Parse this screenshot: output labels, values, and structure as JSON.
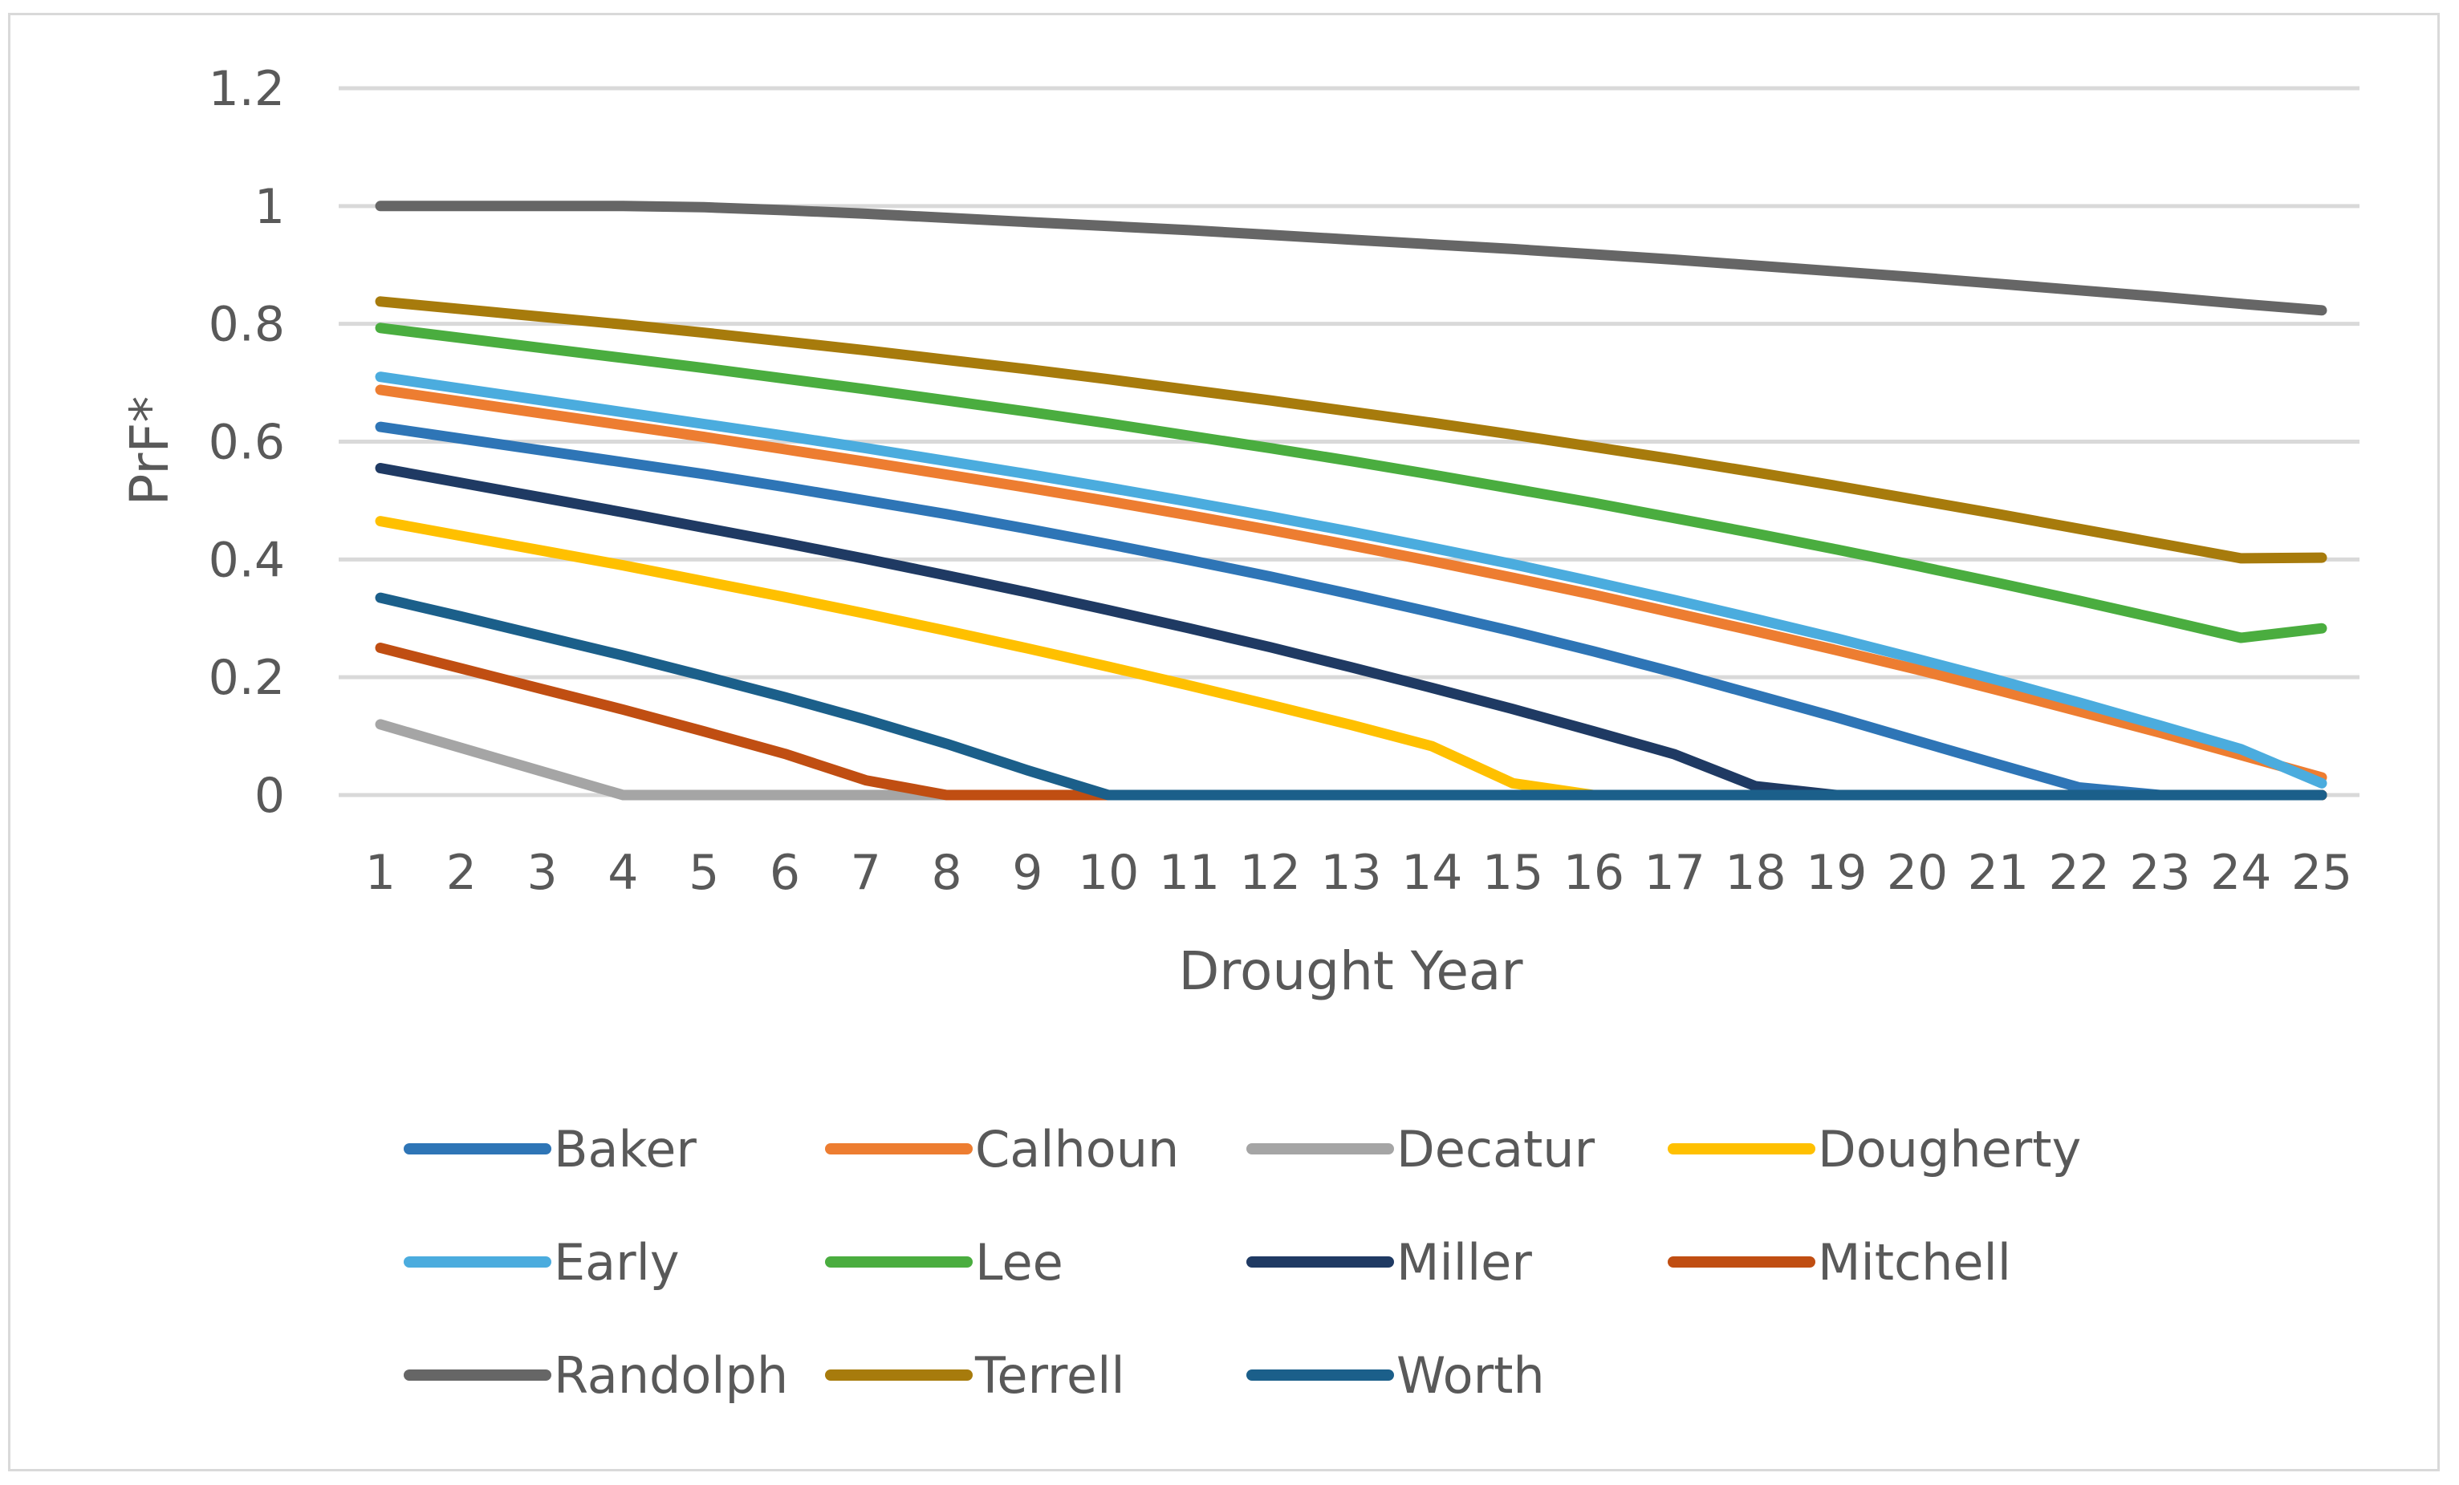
{
  "chart_data": {
    "type": "line",
    "title": "",
    "xlabel": "Drought Year",
    "ylabel": "PrF*",
    "ylim": [
      0,
      1.2
    ],
    "yticks": [
      0,
      0.2,
      0.4,
      0.6,
      0.8,
      1,
      1.2
    ],
    "ytick_labels": [
      "0",
      "0.2",
      "0.4",
      "0.6",
      "0.8",
      "1",
      "1.2"
    ],
    "grid": true,
    "legend_position": "bottom",
    "x": [
      1,
      2,
      3,
      4,
      5,
      6,
      7,
      8,
      9,
      10,
      11,
      12,
      13,
      14,
      15,
      16,
      17,
      18,
      19,
      20,
      21,
      22,
      23,
      24,
      25
    ],
    "x_labels": [
      "1",
      "2",
      "3",
      "4",
      "5",
      "6",
      "7",
      "8",
      "9",
      "10",
      "11",
      "12",
      "13",
      "14",
      "15",
      "16",
      "17",
      "18",
      "19",
      "20",
      "21",
      "22",
      "23",
      "24",
      "25"
    ],
    "series": [
      {
        "name": "Baker",
        "color": "#2E75B6",
        "values": [
          0.625,
          0.605,
          0.585,
          0.565,
          0.545,
          0.523,
          0.5,
          0.477,
          0.452,
          0.426,
          0.399,
          0.371,
          0.341,
          0.31,
          0.278,
          0.244,
          0.208,
          0.17,
          0.132,
          0.092,
          0.052,
          0.013,
          0,
          0,
          0
        ]
      },
      {
        "name": "Calhoun",
        "color": "#ED7D31",
        "values": [
          0.688,
          0.668,
          0.648,
          0.628,
          0.608,
          0.587,
          0.566,
          0.544,
          0.522,
          0.499,
          0.475,
          0.45,
          0.424,
          0.397,
          0.369,
          0.34,
          0.309,
          0.278,
          0.246,
          0.213,
          0.178,
          0.142,
          0.106,
          0.068,
          0.03
        ]
      },
      {
        "name": "Decatur",
        "color": "#A5A5A5",
        "values": [
          0.12,
          0.08,
          0.04,
          0,
          0,
          0,
          0,
          0,
          0,
          0,
          0,
          0,
          0,
          0,
          0,
          0,
          0,
          0,
          0,
          0,
          0,
          0,
          0,
          0,
          0
        ]
      },
      {
        "name": "Dougherty",
        "color": "#FFC000",
        "values": [
          0.465,
          0.44,
          0.415,
          0.39,
          0.363,
          0.336,
          0.308,
          0.279,
          0.249,
          0.218,
          0.186,
          0.153,
          0.119,
          0.083,
          0.02,
          0,
          0,
          0,
          0,
          0,
          0,
          0,
          0,
          0,
          0
        ]
      },
      {
        "name": "Early",
        "color": "#4BACDE",
        "values": [
          0.71,
          0.69,
          0.67,
          0.65,
          0.63,
          0.61,
          0.589,
          0.567,
          0.545,
          0.522,
          0.498,
          0.473,
          0.447,
          0.42,
          0.392,
          0.362,
          0.331,
          0.299,
          0.266,
          0.231,
          0.195,
          0.157,
          0.118,
          0.078,
          0.02
        ]
      },
      {
        "name": "Lee",
        "color": "#4AAD3F",
        "values": [
          0.793,
          0.776,
          0.759,
          0.742,
          0.725,
          0.707,
          0.689,
          0.67,
          0.651,
          0.631,
          0.61,
          0.589,
          0.567,
          0.544,
          0.52,
          0.496,
          0.47,
          0.444,
          0.417,
          0.389,
          0.36,
          0.33,
          0.299,
          0.267,
          0.283
        ]
      },
      {
        "name": "Miller",
        "color": "#1F3A63",
        "values": [
          0.555,
          0.53,
          0.505,
          0.48,
          0.454,
          0.428,
          0.401,
          0.373,
          0.344,
          0.314,
          0.283,
          0.251,
          0.217,
          0.182,
          0.146,
          0.108,
          0.069,
          0.015,
          0,
          0,
          0,
          0,
          0,
          0,
          0
        ]
      },
      {
        "name": "Mitchell",
        "color": "#C04E12",
        "values": [
          0.25,
          0.215,
          0.18,
          0.145,
          0.108,
          0.07,
          0.025,
          0,
          0,
          0,
          0,
          0,
          0,
          0,
          0,
          0,
          0,
          0,
          0,
          0,
          0,
          0,
          0,
          0,
          0
        ]
      },
      {
        "name": "Randolph",
        "color": "#666666",
        "values": [
          1.0,
          1.0,
          1.0,
          1.0,
          0.998,
          0.993,
          0.987,
          0.98,
          0.973,
          0.966,
          0.959,
          0.951,
          0.943,
          0.935,
          0.927,
          0.918,
          0.909,
          0.899,
          0.889,
          0.879,
          0.868,
          0.857,
          0.846,
          0.834,
          0.823
        ]
      },
      {
        "name": "Terrell",
        "color": "#A77B0C",
        "values": [
          0.838,
          0.825,
          0.812,
          0.799,
          0.785,
          0.77,
          0.755,
          0.739,
          0.723,
          0.706,
          0.688,
          0.67,
          0.651,
          0.632,
          0.612,
          0.591,
          0.57,
          0.548,
          0.525,
          0.501,
          0.477,
          0.452,
          0.427,
          0.402,
          0.403
        ]
      },
      {
        "name": "Worth",
        "color": "#1B5F8A",
        "values": [
          0.335,
          0.303,
          0.27,
          0.237,
          0.202,
          0.166,
          0.128,
          0.087,
          0.042,
          0,
          0,
          0,
          0,
          0,
          0,
          0,
          0,
          0,
          0,
          0,
          0,
          0,
          0,
          0,
          0
        ]
      }
    ]
  }
}
